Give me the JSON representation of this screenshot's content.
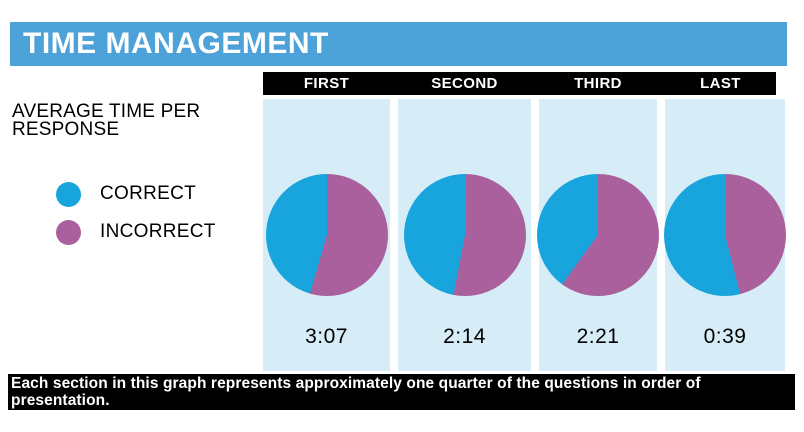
{
  "header": {
    "title": "TIME MANAGEMENT",
    "bg_color": "#4DA2D9",
    "text_color": "#FFFFFF"
  },
  "left_panel": {
    "heading_line1": "AVERAGE TIME PER",
    "heading_line2": "RESPONSE",
    "legend": [
      {
        "label": "CORRECT",
        "color": "#18A4DC"
      },
      {
        "label": "INCORRECT",
        "color": "#A9609D"
      }
    ]
  },
  "footer": {
    "note": "Each section in this graph represents approximately one quarter of the questions in order of presentation.",
    "bg_color": "#000000",
    "text_color": "#FFFFFF"
  },
  "colors": {
    "correct_blue": "#18A4DC",
    "incorrect_purple": "#A9609D",
    "column_bg": "#D6EDF8",
    "header_bar_bg": "#4DA2D9",
    "column_header_bg": "#000000"
  },
  "chart_data": {
    "type": "pie",
    "title": "TIME MANAGEMENT",
    "subtitle": "AVERAGE TIME PER RESPONSE",
    "legend": [
      "CORRECT",
      "INCORRECT"
    ],
    "legend_position": "left",
    "slice_order": "INCORRECT slice starts at 12 o'clock and sweeps clockwise",
    "sections": [
      {
        "label": "FIRST",
        "avg_time_per_response": "3:07",
        "correct_pct": 45.5,
        "incorrect_pct": 54.5
      },
      {
        "label": "SECOND",
        "avg_time_per_response": "2:14",
        "correct_pct": 47,
        "incorrect_pct": 53
      },
      {
        "label": "THIRD",
        "avg_time_per_response": "2:21",
        "correct_pct": 40,
        "incorrect_pct": 60
      },
      {
        "label": "LAST",
        "avg_time_per_response": "0:39",
        "correct_pct": 54,
        "incorrect_pct": 46
      }
    ],
    "note": "Each section in this graph represents approximately one quarter of the questions in order of presentation."
  }
}
